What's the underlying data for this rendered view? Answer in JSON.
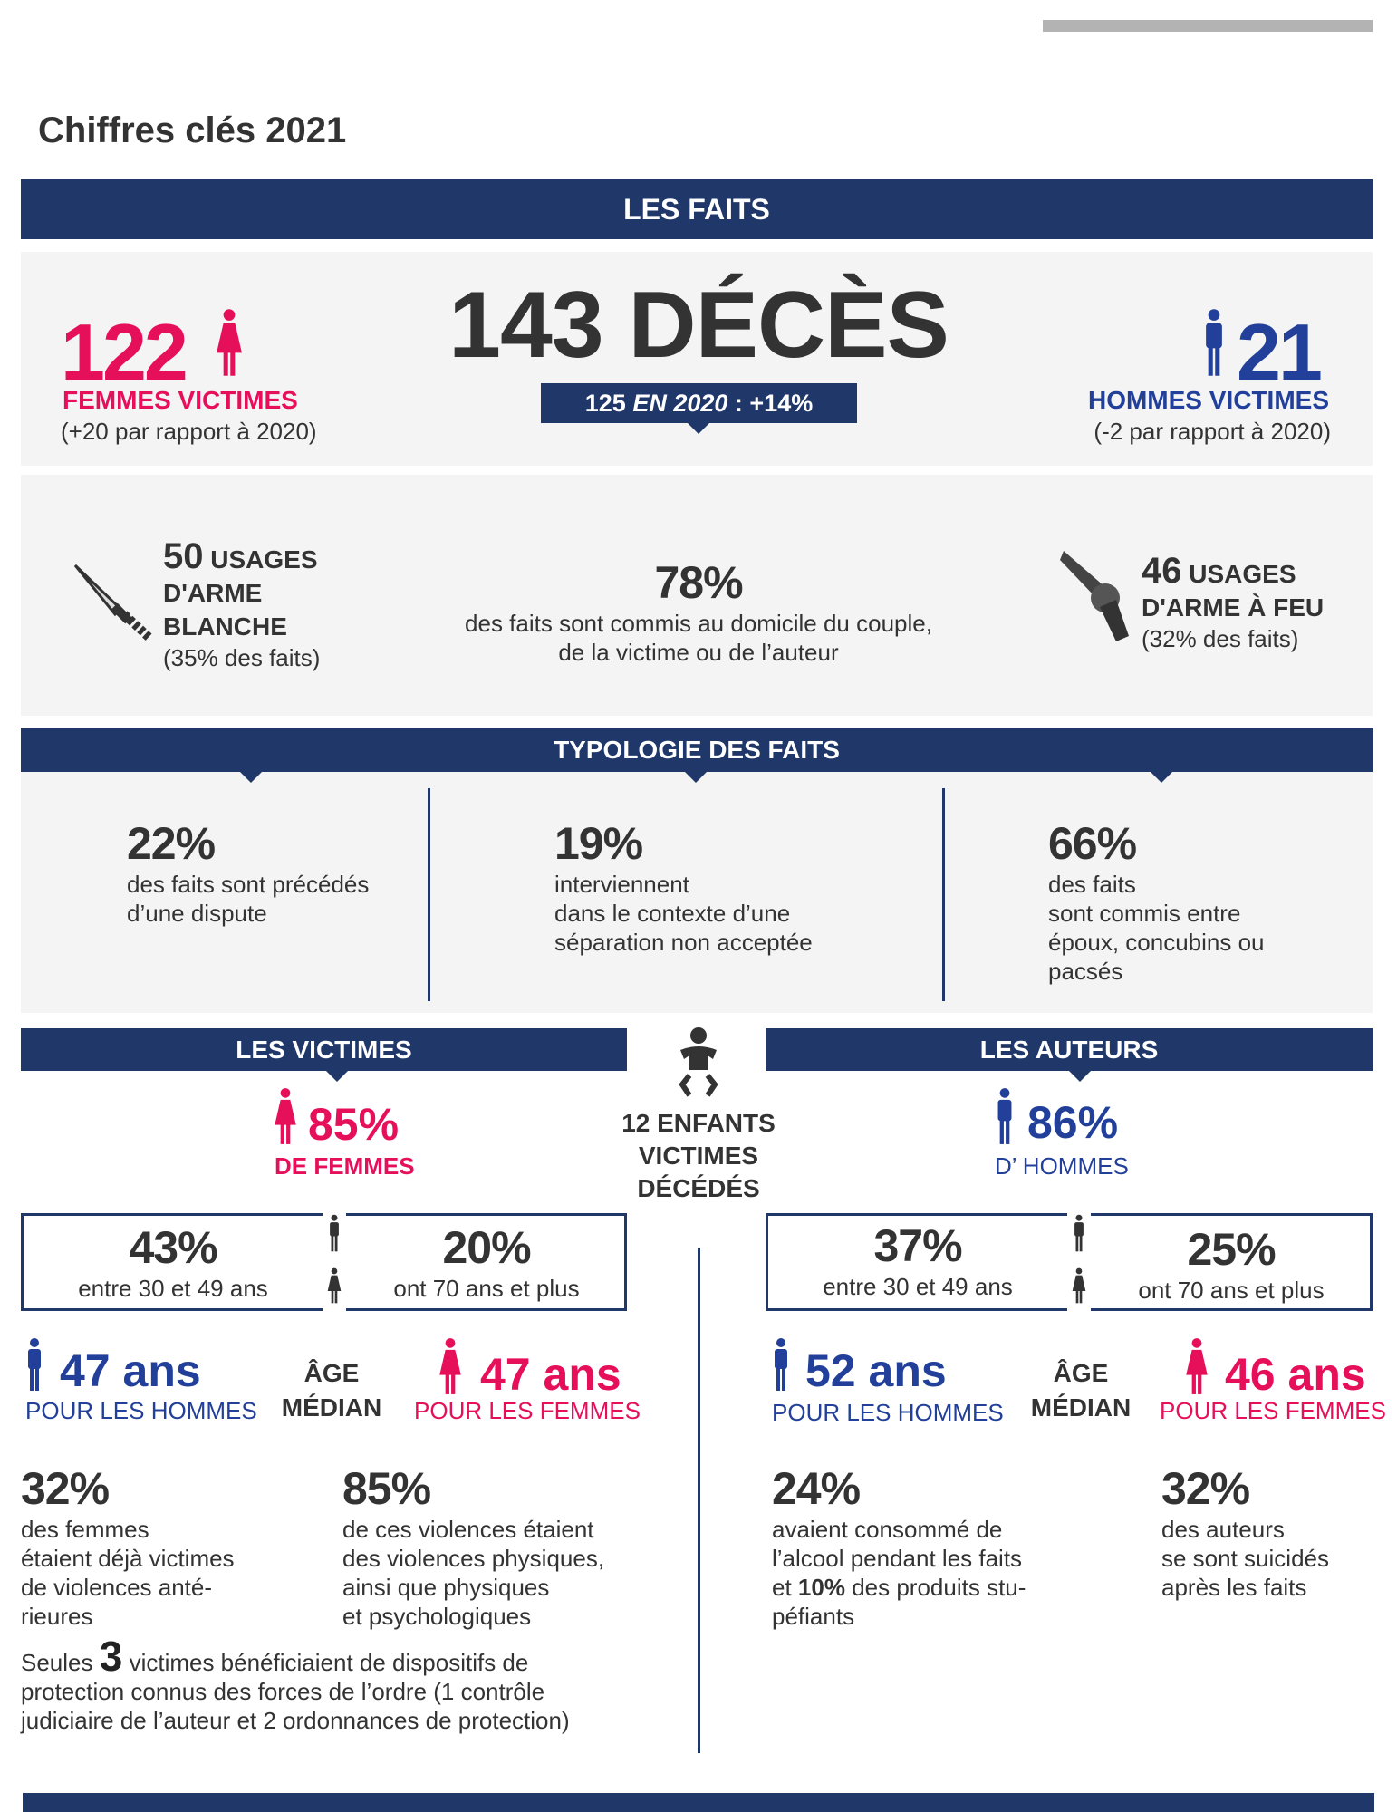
{
  "title": "Chiffres clés 2021",
  "colors": {
    "navy": "#1f3769",
    "pink": "#e6105a",
    "blue": "#22409a",
    "panel": "#f4f4f4"
  },
  "faits": {
    "banner": "LES FAITS",
    "women_count": "122",
    "women_label": "FEMMES VICTIMES",
    "women_change": "(+20 par rapport à 2020)",
    "deaths": "143 DÉCÈS",
    "badge_a": "125",
    "badge_b": "EN 2020",
    "badge_c": ": +14%",
    "men_count": "21",
    "men_label": "HOMMES VICTIMES",
    "men_change": "(-2 par rapport à 2020)",
    "knife": {
      "icon": "knife-icon",
      "n": "50",
      "l1": "USAGES",
      "l2": "D'ARME",
      "l3": "BLANCHE",
      "pct": "(35% des faits)"
    },
    "home": {
      "pct": "78%",
      "l1": "des faits sont commis au domicile du couple,",
      "l2": "de la victime ou de l’auteur"
    },
    "gun": {
      "icon": "revolver-icon",
      "n": "46",
      "l1": "USAGES",
      "l2": "D'ARME À FEU",
      "pct": "(32% des faits)"
    }
  },
  "typologie": {
    "banner": "TYPOLOGIE DES FAITS",
    "items": [
      {
        "pct": "22%",
        "lines": [
          "des faits sont précédés",
          "d’une dispute"
        ]
      },
      {
        "pct": "19%",
        "lines": [
          "interviennent",
          "dans le contexte d’une",
          "séparation non acceptée"
        ]
      },
      {
        "pct": "66%",
        "lines": [
          "des faits",
          "sont commis entre",
          "époux, concubins ou",
          "pacsés"
        ]
      }
    ]
  },
  "enfants": {
    "icon": "baby-icon",
    "l1": "12 ENFANTS",
    "l2": "VICTIMES",
    "l3": "DÉCÉDÉS"
  },
  "victimes": {
    "banner": "LES VICTIMES",
    "share": "85%",
    "share_label": "DE FEMMES",
    "age_a": {
      "pct": "43%",
      "label": "entre 30 et 49 ans"
    },
    "age_b": {
      "pct": "20%",
      "label": "ont 70 ans et plus"
    },
    "men_age": "47 ans",
    "men_label": "POUR LES HOMMES",
    "median_1": "ÂGE",
    "median_2": "MÉDIAN",
    "women_age": "47 ans",
    "women_label": "POUR LES FEMMES",
    "stat1": {
      "pct": "32%",
      "lines": [
        "des femmes",
        "étaient déjà victimes",
        "de violences anté-",
        "rieures"
      ]
    },
    "stat2": {
      "pct": "85%",
      "lines": [
        "de ces violences étaient",
        "des violences physiques,",
        "ainsi que physiques",
        "et psychologiques"
      ]
    },
    "seules": "Seules",
    "seules_n": "3",
    "seules_1": "victimes bénéficiaient de dispositifs de",
    "seules_2": "protection connus des forces de l’ordre (1 contrôle",
    "seules_3": "judiciaire de l’auteur et 2 ordonnances de protection)"
  },
  "auteurs": {
    "banner": "LES AUTEURS",
    "share": "86%",
    "share_label": "D’ HOMMES",
    "age_a": {
      "pct": "37%",
      "label": "entre 30 et 49 ans"
    },
    "age_b": {
      "pct": "25%",
      "label": "ont 70 ans et plus"
    },
    "men_age": "52 ans",
    "men_label": "POUR LES HOMMES",
    "median_1": "ÂGE",
    "median_2": "MÉDIAN",
    "women_age": "46 ans",
    "women_label": "POUR LES FEMMES",
    "stat1": {
      "pct": "24%",
      "l1": "avaient consommé de",
      "l2": "l’alcool pendant les faits",
      "l3a": "et",
      "l3b": "10%",
      "l3c": "des produits stu-",
      "l4": "péfiants"
    },
    "stat2": {
      "pct": "32%",
      "lines": [
        "des auteurs",
        "se sont suicidés",
        "après les faits"
      ]
    }
  }
}
